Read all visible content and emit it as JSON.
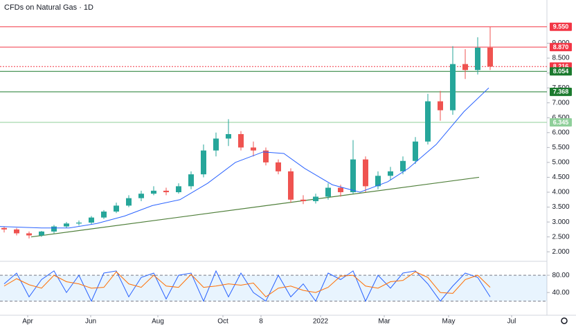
{
  "chart_data": [
    {
      "type": "candlestick",
      "title": "CFDs on Natural Gas · 1D",
      "x": [
        6,
        24,
        42,
        60,
        78,
        96,
        114,
        132,
        150,
        168,
        186,
        204,
        222,
        240,
        258,
        276,
        294,
        312,
        330,
        348,
        366,
        384,
        402,
        420,
        438,
        456,
        474,
        492,
        510,
        528,
        546,
        564,
        582,
        600,
        618,
        636,
        654,
        672,
        690,
        708
      ],
      "open": [
        2.8,
        2.75,
        2.62,
        2.55,
        2.68,
        2.85,
        2.95,
        2.98,
        3.15,
        3.35,
        3.55,
        3.8,
        3.95,
        4.05,
        4.0,
        4.2,
        4.6,
        5.4,
        5.8,
        5.95,
        5.5,
        5.4,
        5.0,
        4.7,
        3.75,
        3.7,
        3.85,
        4.15,
        4.0,
        5.1,
        4.2,
        4.55,
        4.7,
        5.05,
        5.7,
        7.05,
        6.75,
        8.3,
        8.1,
        8.85
      ],
      "high": [
        2.85,
        2.8,
        2.68,
        2.7,
        2.9,
        3.0,
        3.05,
        3.2,
        3.4,
        3.65,
        3.9,
        4.05,
        4.2,
        4.15,
        4.3,
        4.7,
        5.6,
        6.0,
        6.45,
        6.05,
        5.7,
        5.5,
        5.1,
        4.8,
        3.9,
        3.95,
        4.3,
        4.25,
        5.75,
        5.2,
        4.7,
        4.85,
        5.2,
        5.85,
        7.3,
        7.4,
        8.9,
        8.8,
        9.2,
        9.55
      ],
      "low": [
        2.65,
        2.55,
        2.45,
        2.5,
        2.62,
        2.8,
        2.88,
        2.92,
        3.1,
        3.3,
        3.5,
        3.7,
        3.9,
        3.9,
        3.95,
        4.1,
        4.5,
        5.2,
        5.55,
        5.4,
        5.2,
        4.9,
        4.6,
        3.65,
        3.6,
        3.62,
        3.75,
        3.85,
        3.95,
        4.0,
        4.1,
        4.4,
        4.6,
        4.95,
        5.6,
        6.4,
        6.6,
        7.8,
        7.95,
        8.1
      ],
      "close": [
        2.75,
        2.62,
        2.55,
        2.68,
        2.85,
        2.95,
        2.98,
        3.15,
        3.35,
        3.55,
        3.8,
        3.95,
        4.05,
        4.0,
        4.2,
        4.6,
        5.4,
        5.8,
        5.95,
        5.5,
        5.4,
        5.0,
        4.7,
        3.75,
        3.7,
        3.85,
        4.15,
        4.0,
        5.1,
        4.2,
        4.55,
        4.7,
        5.05,
        5.7,
        7.05,
        6.75,
        8.3,
        8.1,
        8.85,
        8.216
      ],
      "up_color": "#26a69a",
      "down_color": "#ef5350",
      "moving_average": {
        "color": "#2962ff",
        "x": [
          0,
          60,
          100,
          140,
          180,
          220,
          260,
          300,
          340,
          380,
          410,
          440,
          480,
          520,
          560,
          590,
          630,
          670,
          706
        ],
        "values": [
          2.85,
          2.8,
          2.8,
          2.95,
          3.2,
          3.55,
          3.75,
          4.3,
          5.0,
          5.35,
          5.3,
          4.8,
          4.25,
          4.0,
          4.35,
          4.8,
          5.6,
          6.7,
          7.5
        ]
      },
      "trendline": {
        "color": "#4f7f3a",
        "x": [
          45,
          692
        ],
        "values": [
          2.5,
          4.5
        ]
      },
      "levels": [
        {
          "value": 9.55,
          "label": "9.550",
          "color": "#f23645"
        },
        {
          "value": 8.87,
          "label": "8.870",
          "color": "#f23645"
        },
        {
          "value": 8.216,
          "label": "8.216",
          "color": "#f23645"
        },
        {
          "value": 8.054,
          "label": "8.054",
          "color": "#1b7a2e"
        },
        {
          "value": 7.368,
          "label": "7.368",
          "color": "#1b7a2e"
        },
        {
          "value": 6.345,
          "label": "6.345",
          "color": "#8fcf9a"
        }
      ],
      "xlim": [
        0,
        790
      ],
      "ylim": [
        1.75,
        10.45
      ],
      "xticks": [
        {
          "value": 40,
          "label": "Apr"
        },
        {
          "value": 131,
          "label": "Jun"
        },
        {
          "value": 228,
          "label": "Aug"
        },
        {
          "value": 322,
          "label": "Oct"
        },
        {
          "value": 377,
          "label": "8"
        },
        {
          "value": 463,
          "label": "2022"
        },
        {
          "value": 555,
          "label": "Mar"
        },
        {
          "value": 648,
          "label": "May"
        },
        {
          "value": 739,
          "label": "Jul"
        }
      ],
      "yticks": [
        {
          "value": 2,
          "label": "2.000"
        },
        {
          "value": 2.5,
          "label": "2.500"
        },
        {
          "value": 3,
          "label": "3.000"
        },
        {
          "value": 3.5,
          "label": "3.500"
        },
        {
          "value": 4,
          "label": "4.000"
        },
        {
          "value": 4.5,
          "label": "4.500"
        },
        {
          "value": 5,
          "label": "5.000"
        },
        {
          "value": 5.5,
          "label": "5.500"
        },
        {
          "value": 6,
          "label": "6.000"
        },
        {
          "value": 6.5,
          "label": "6.500"
        },
        {
          "value": 7,
          "label": "7.000"
        },
        {
          "value": 7.5,
          "label": "7.500"
        },
        {
          "value": 8,
          "label": "8.000"
        },
        {
          "value": 8.5,
          "label": "8.500"
        },
        {
          "value": 9,
          "label": "9.000"
        }
      ]
    },
    {
      "type": "line",
      "x": [
        6,
        24,
        42,
        60,
        78,
        96,
        114,
        132,
        150,
        168,
        186,
        204,
        222,
        240,
        258,
        276,
        294,
        312,
        330,
        348,
        366,
        384,
        402,
        420,
        438,
        456,
        474,
        492,
        510,
        528,
        546,
        564,
        582,
        600,
        618,
        636,
        654,
        672,
        690,
        708
      ],
      "series": [
        {
          "color": "#2962ff",
          "values": [
            60,
            85,
            30,
            70,
            90,
            40,
            80,
            20,
            85,
            90,
            30,
            75,
            85,
            25,
            80,
            85,
            20,
            90,
            30,
            85,
            40,
            20,
            80,
            30,
            60,
            20,
            85,
            70,
            90,
            20,
            80,
            50,
            85,
            90,
            60,
            20,
            55,
            85,
            75,
            30
          ]
        },
        {
          "color": "#ff6d00",
          "values": [
            55,
            72,
            58,
            50,
            80,
            65,
            60,
            50,
            52,
            88,
            60,
            52,
            80,
            55,
            52,
            82,
            52,
            55,
            60,
            57,
            62,
            30,
            50,
            55,
            45,
            40,
            52,
            78,
            80,
            55,
            50,
            65,
            68,
            88,
            75,
            40,
            38,
            70,
            80,
            52
          ]
        }
      ],
      "band": [
        20,
        80
      ],
      "xlim": [
        0,
        790
      ],
      "ylim": [
        -11,
        109
      ],
      "yticks": [
        {
          "value": 40,
          "label": "40.00"
        },
        {
          "value": 80,
          "label": "80.00"
        }
      ]
    }
  ]
}
